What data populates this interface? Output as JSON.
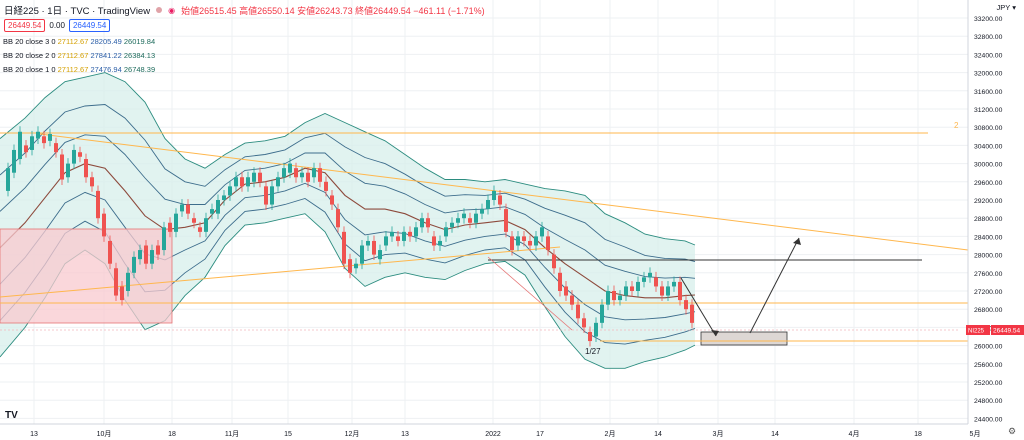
{
  "header": {
    "symbol": "日経225 · 1日 · TVC · TradingView",
    "ohlc": "始値26515.45 高値26550.14 安値26243.73 終値26449.54 −461.11 (−1.71%)",
    "price_left": "26449.54",
    "spread": "0.00",
    "price_right": "26449.54"
  },
  "indicators": [
    {
      "name": "BB 20 close 3 0",
      "basis": "27112.67",
      "upper": "28205.49",
      "lower": "26019.84"
    },
    {
      "name": "BB 20 close 2 0",
      "basis": "27112.67",
      "upper": "27841.22",
      "lower": "26384.13"
    },
    {
      "name": "BB 20 close 1 0",
      "basis": "27112.67",
      "upper": "27476.94",
      "lower": "26748.39"
    }
  ],
  "currency": "JPY",
  "colors": {
    "up": "#26a69a",
    "down": "#ef5350",
    "basis": "#8d4a3c",
    "band": "#2b8c7f",
    "fill": "#d7efeb",
    "orange": "#ffb74d",
    "badge": "#f23645"
  },
  "chart_data": {
    "type": "candlestick",
    "title": "日経225",
    "y_ticks": [
      "33200.00",
      "32800.00",
      "32400.00",
      "32000.00",
      "31600.00",
      "31200.00",
      "30800.00",
      "30400.00",
      "30000.00",
      "29600.00",
      "29200.00",
      "28800.00",
      "28400.00",
      "28000.00",
      "27600.00",
      "27200.00",
      "26800.00",
      "26400.00",
      "26000.00",
      "25600.00",
      "25200.00",
      "24800.00",
      "24400.00"
    ],
    "x_ticks": [
      "13",
      "10月",
      "18",
      "11月",
      "15",
      "12月",
      "13",
      "2022",
      "17",
      "2月",
      "14",
      "3月",
      "14",
      "4月",
      "18",
      "5月"
    ],
    "last_price_badge": "26449.54",
    "last_price_tag": "NI225",
    "annotations": [
      "1/27",
      "2"
    ],
    "bb_latest": {
      "basis": 27112.67,
      "upper_3": 28205.49,
      "lower_3": 26019.84,
      "upper_2": 27841.22,
      "lower_2": 26384.13,
      "upper_1": 27476.94,
      "lower_1": 26748.39
    },
    "ylim": [
      24200,
      33400
    ],
    "grid": true
  }
}
